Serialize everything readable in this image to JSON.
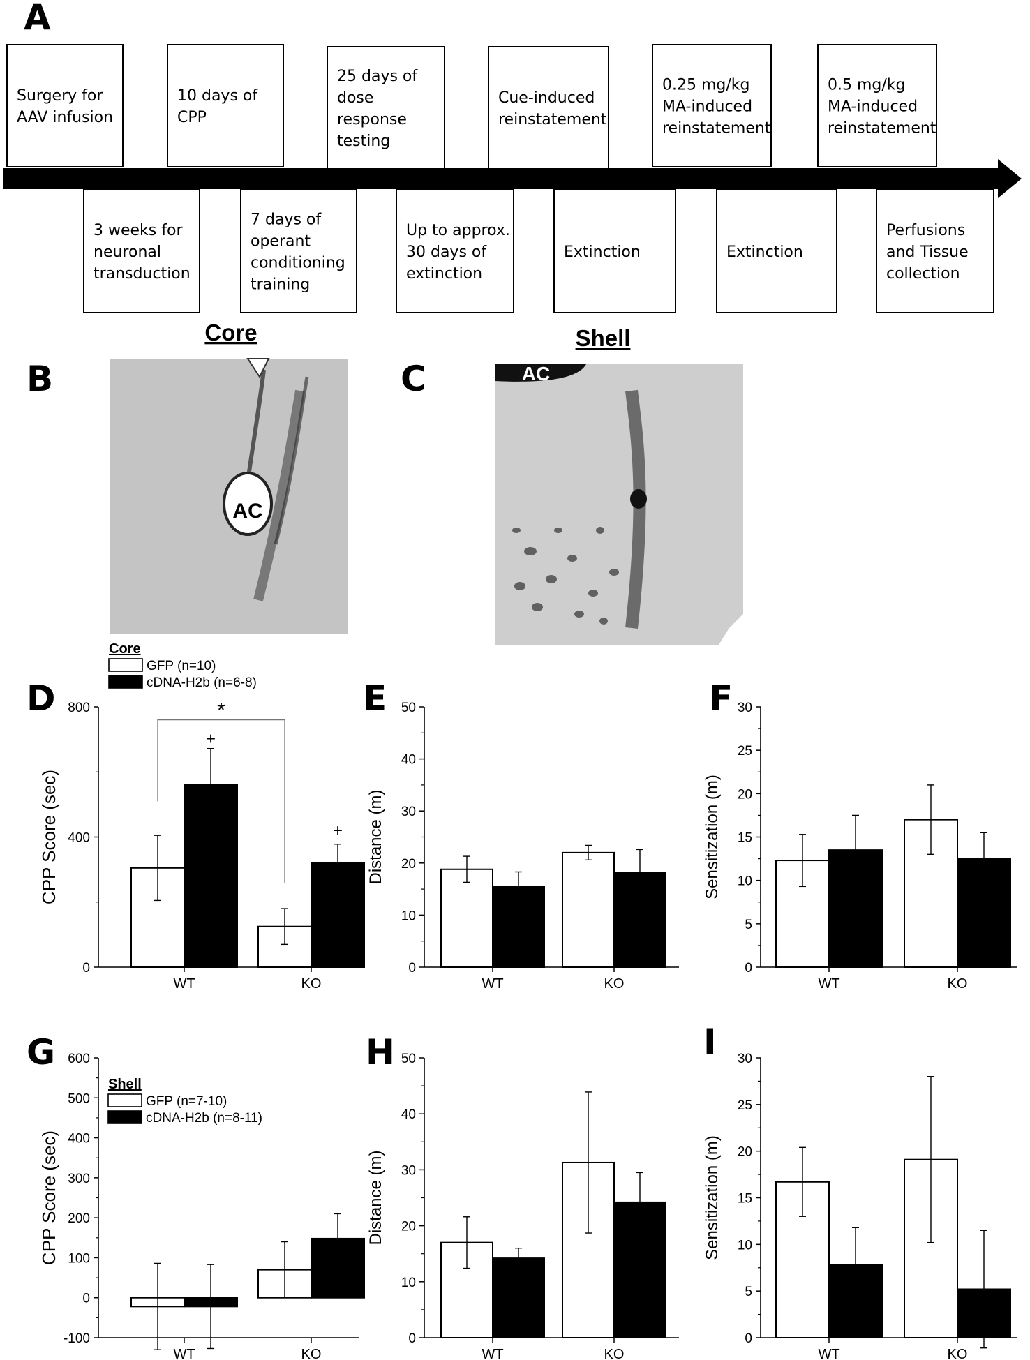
{
  "panel_letters": {
    "A": "A",
    "B": "B",
    "C": "C",
    "D": "D",
    "E": "E",
    "F": "F",
    "G": "G",
    "H": "H",
    "I": "I"
  },
  "timeline": {
    "top_boxes": [
      [
        "Surgery for",
        "AAV infusion"
      ],
      [
        "10 days of",
        "CPP"
      ],
      [
        "25 days of",
        "dose",
        "response",
        "testing"
      ],
      [
        "Cue-induced",
        "reinstatement"
      ],
      [
        "0.25 mg/kg",
        "MA-induced",
        "reinstatement"
      ],
      [
        "0.5 mg/kg",
        "MA-induced",
        "reinstatement"
      ]
    ],
    "bottom_boxes": [
      [
        "3 weeks for",
        "neuronal",
        "transduction"
      ],
      [
        "7 days of",
        "operant",
        "conditioning",
        "training"
      ],
      [
        "Up to approx.",
        "30 days of",
        "extinction"
      ],
      [
        "Extinction"
      ],
      [
        "Extinction"
      ],
      [
        "Perfusions",
        "and Tissue",
        "collection"
      ]
    ]
  },
  "images": {
    "core_title": "Core",
    "shell_title": "Shell",
    "core_label": "AC",
    "shell_label": "AC"
  },
  "colors": {
    "gfp": "#ffffff",
    "cdna": "#000000"
  },
  "chart_data": [
    {
      "id": "D",
      "type": "bar",
      "categories": [
        "WT",
        "KO"
      ],
      "ylabel": "CPP Score (sec)",
      "ylim": [
        0,
        800
      ],
      "yticks": [
        0,
        400,
        800
      ],
      "legend": {
        "title": "Core",
        "entries": [
          "GFP (n=10)",
          "cDNA-H2b (n=6-8)"
        ]
      },
      "series": [
        {
          "name": "GFP (n=10)",
          "values": [
            305,
            125
          ],
          "errors": [
            100,
            55
          ]
        },
        {
          "name": "cDNA-H2b (n=6-8)",
          "values": [
            560,
            320
          ],
          "errors": [
            112,
            58
          ]
        }
      ],
      "annotations": {
        "bracket_label": "*",
        "plus": "+"
      }
    },
    {
      "id": "E",
      "type": "bar",
      "categories": [
        "WT",
        "KO"
      ],
      "ylabel": "Distance (m)",
      "ylim": [
        0,
        50
      ],
      "yticks": [
        0,
        10,
        20,
        30,
        40,
        50
      ],
      "series": [
        {
          "values": [
            18.8,
            22.0
          ],
          "errors": [
            2.5,
            1.4
          ]
        },
        {
          "values": [
            15.5,
            18.1
          ],
          "errors": [
            2.8,
            4.5
          ]
        }
      ]
    },
    {
      "id": "F",
      "type": "bar",
      "categories": [
        "WT",
        "KO"
      ],
      "ylabel": "Sensitization (m)",
      "ylim": [
        0,
        30
      ],
      "yticks": [
        0,
        5,
        10,
        15,
        20,
        25,
        30
      ],
      "series": [
        {
          "values": [
            12.3,
            17.0
          ],
          "errors": [
            3.0,
            4.0
          ]
        },
        {
          "values": [
            13.5,
            12.5
          ],
          "errors": [
            4.0,
            3.0
          ]
        }
      ]
    },
    {
      "id": "G",
      "type": "bar",
      "categories": [
        "WT",
        "KO"
      ],
      "ylabel": "CPP Score (sec)",
      "ylim": [
        -100,
        600
      ],
      "yticks": [
        -100,
        0,
        100,
        200,
        300,
        400,
        500,
        600
      ],
      "legend": {
        "title": "Shell",
        "entries": [
          "GFP (n=7-10)",
          "cDNA-H2b (n=8-11)"
        ]
      },
      "series": [
        {
          "name": "GFP (n=7-10)",
          "values": [
            -22,
            70
          ],
          "errors": [
            108,
            70
          ]
        },
        {
          "name": "cDNA-H2b (n=8-11)",
          "values": [
            -22,
            148
          ],
          "errors": [
            105,
            62
          ]
        }
      ]
    },
    {
      "id": "H",
      "type": "bar",
      "categories": [
        "WT",
        "KO"
      ],
      "ylabel": "Distance (m)",
      "ylim": [
        0,
        50
      ],
      "yticks": [
        0,
        10,
        20,
        30,
        40,
        50
      ],
      "series": [
        {
          "values": [
            17.0,
            31.3
          ],
          "errors": [
            4.6,
            12.6
          ]
        },
        {
          "values": [
            14.2,
            24.2
          ],
          "errors": [
            1.8,
            5.3
          ]
        }
      ]
    },
    {
      "id": "I",
      "type": "bar",
      "categories": [
        "WT",
        "KO"
      ],
      "ylabel": "Sensitization (m)",
      "ylim": [
        0,
        30
      ],
      "yticks": [
        0,
        5,
        10,
        15,
        20,
        25,
        30
      ],
      "series": [
        {
          "values": [
            16.7,
            19.1
          ],
          "errors": [
            3.7,
            8.9
          ]
        },
        {
          "values": [
            7.8,
            5.2
          ],
          "errors": [
            4.0,
            6.3
          ]
        }
      ]
    }
  ]
}
